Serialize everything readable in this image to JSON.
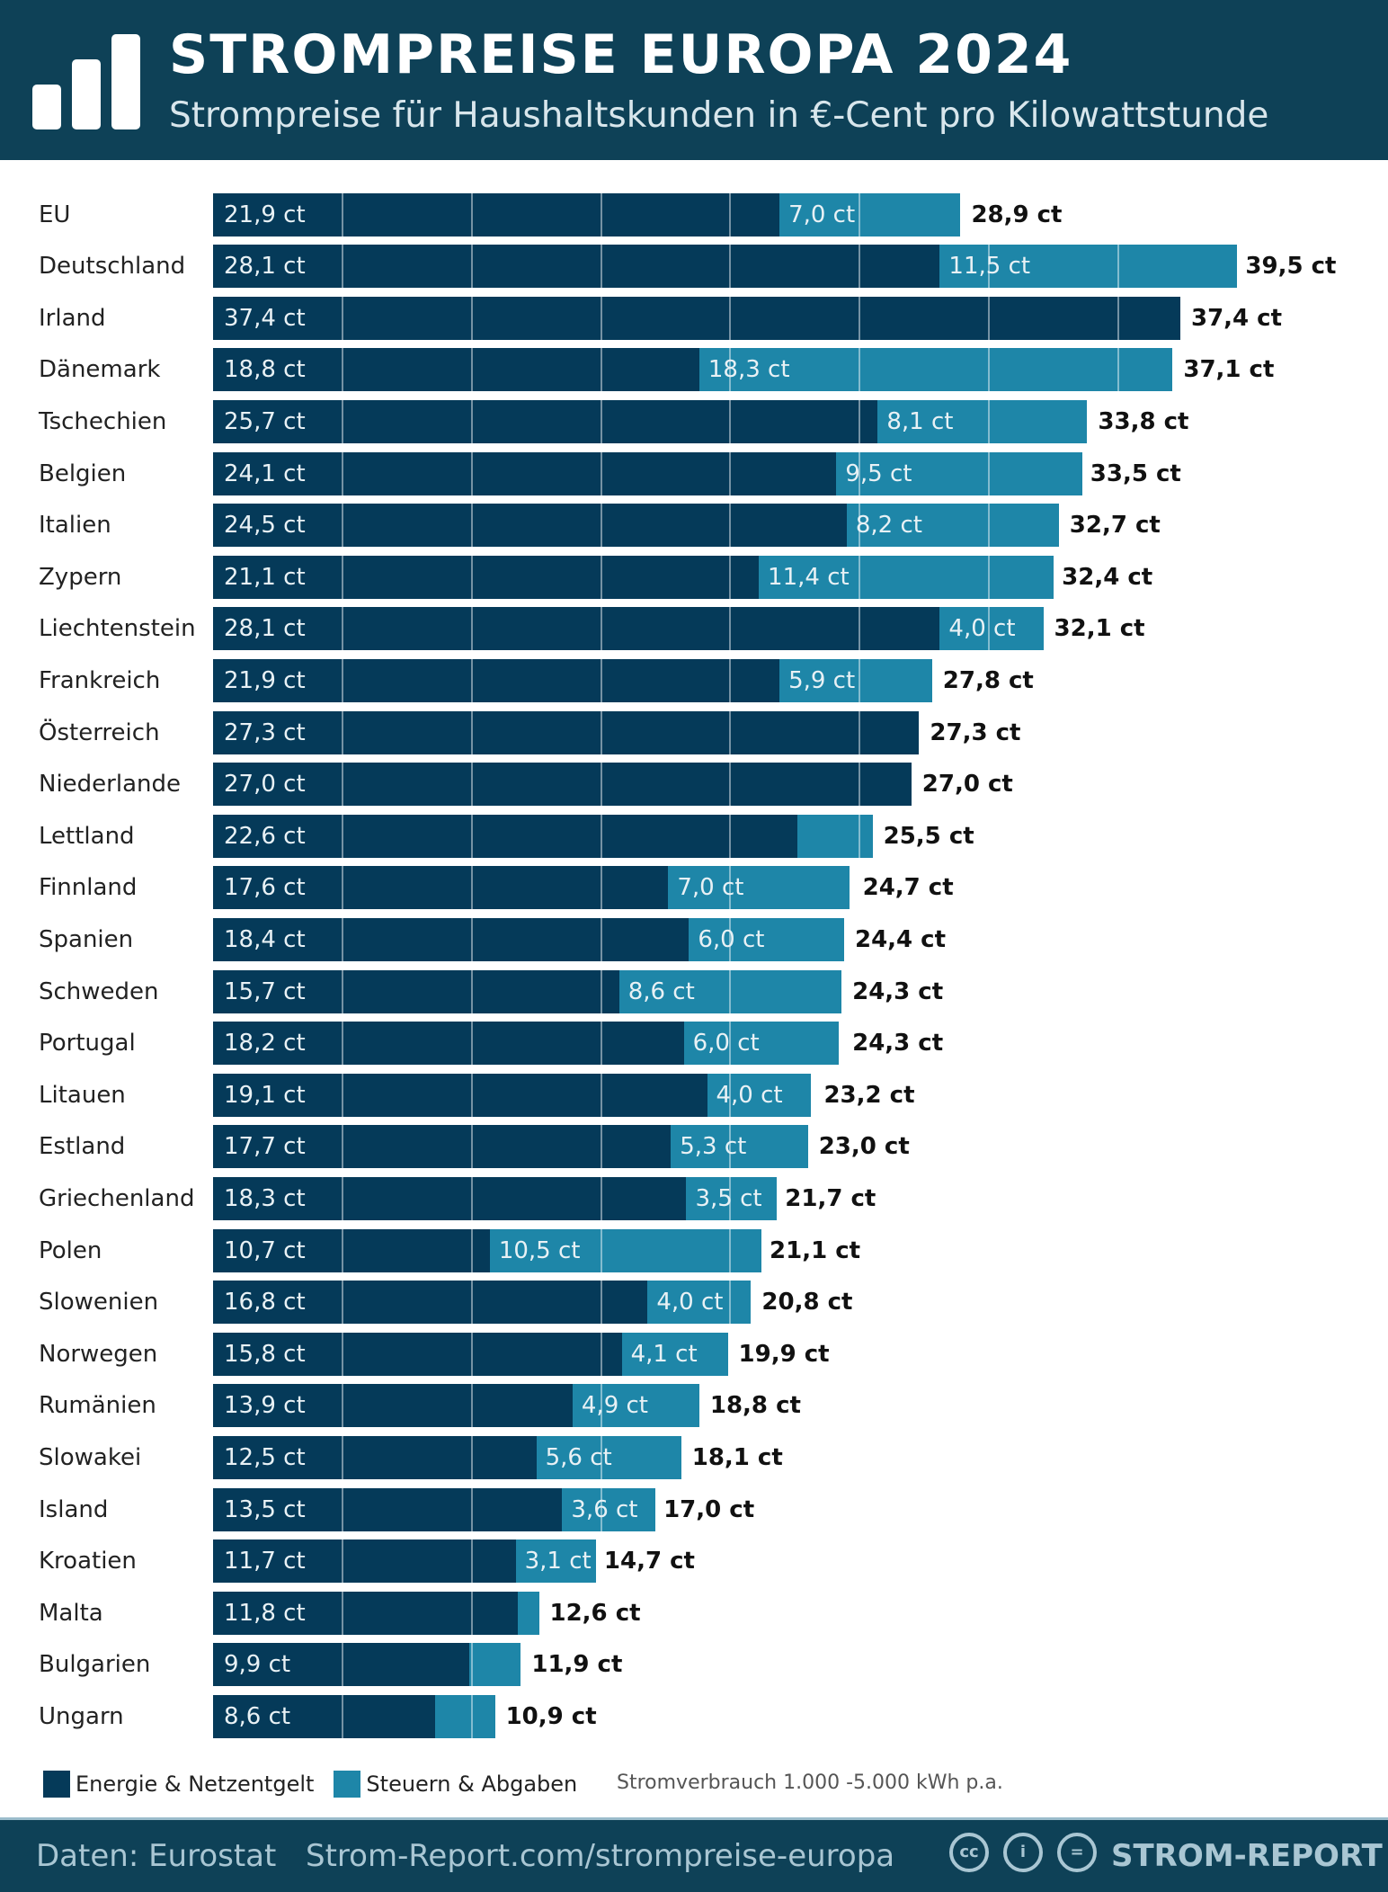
{
  "header": {
    "title": "STROMPREISE EUROPA 2024",
    "subtitle": "Strompreise für Haushaltskunden in €-Cent pro Kilowattstunde"
  },
  "legend": {
    "energy": "Energie & Netzentgelt",
    "tax": "Steuern & Abgaben",
    "note": "Stromverbrauch 1.000 -5.000 kWh p.a."
  },
  "footer": {
    "source": "Daten: Eurostat",
    "url": "Strom-Report.com/strompreise-europa",
    "brand": "STROM-REPORT",
    "cc": "cc"
  },
  "colors": {
    "energy": "#053a59",
    "tax": "#1e86a8",
    "header": "#0e4157"
  },
  "chart_data": {
    "type": "bar",
    "stacked": true,
    "orientation": "horizontal",
    "unit": "ct",
    "title": "STROMPREISE EUROPA 2024",
    "categories": [
      "EU",
      "Deutschland",
      "Irland",
      "Dänemark",
      "Tschechien",
      "Belgien",
      "Italien",
      "Zypern",
      "Liechtenstein",
      "Frankreich",
      "Österreich",
      "Niederlande",
      "Lettland",
      "Finnland",
      "Spanien",
      "Schweden",
      "Portugal",
      "Litauen",
      "Estland",
      "Griechenland",
      "Polen",
      "Slowenien",
      "Norwegen",
      "Rumänien",
      "Slowakei",
      "Island",
      "Kroatien",
      "Malta",
      "Bulgarien",
      "Ungarn"
    ],
    "series": [
      {
        "name": "Energie & Netzentgelt",
        "values": [
          21.9,
          28.1,
          37.4,
          18.8,
          25.7,
          24.1,
          24.5,
          21.1,
          28.1,
          21.9,
          27.3,
          27.0,
          22.6,
          17.6,
          18.4,
          15.7,
          18.2,
          19.1,
          17.7,
          18.3,
          10.7,
          16.8,
          15.8,
          13.9,
          12.5,
          13.5,
          11.7,
          11.8,
          9.9,
          8.6
        ]
      },
      {
        "name": "Steuern & Abgaben",
        "values": [
          7.0,
          11.5,
          0,
          18.3,
          8.1,
          9.5,
          8.2,
          11.4,
          4.0,
          5.9,
          0,
          0,
          2.9,
          7.0,
          6.0,
          8.6,
          6.0,
          4.0,
          5.3,
          3.5,
          10.5,
          4.0,
          4.1,
          4.9,
          5.6,
          3.6,
          3.1,
          0.8,
          2.0,
          2.3
        ]
      }
    ],
    "totals": [
      28.9,
      39.5,
      37.4,
      37.1,
      33.8,
      33.5,
      32.7,
      32.4,
      32.1,
      27.8,
      27.3,
      27.0,
      25.5,
      24.7,
      24.4,
      24.3,
      24.3,
      23.2,
      23.0,
      21.7,
      21.1,
      20.8,
      19.9,
      18.8,
      18.1,
      17.0,
      14.7,
      12.6,
      11.9,
      10.9
    ],
    "gridline_step": 5
  }
}
